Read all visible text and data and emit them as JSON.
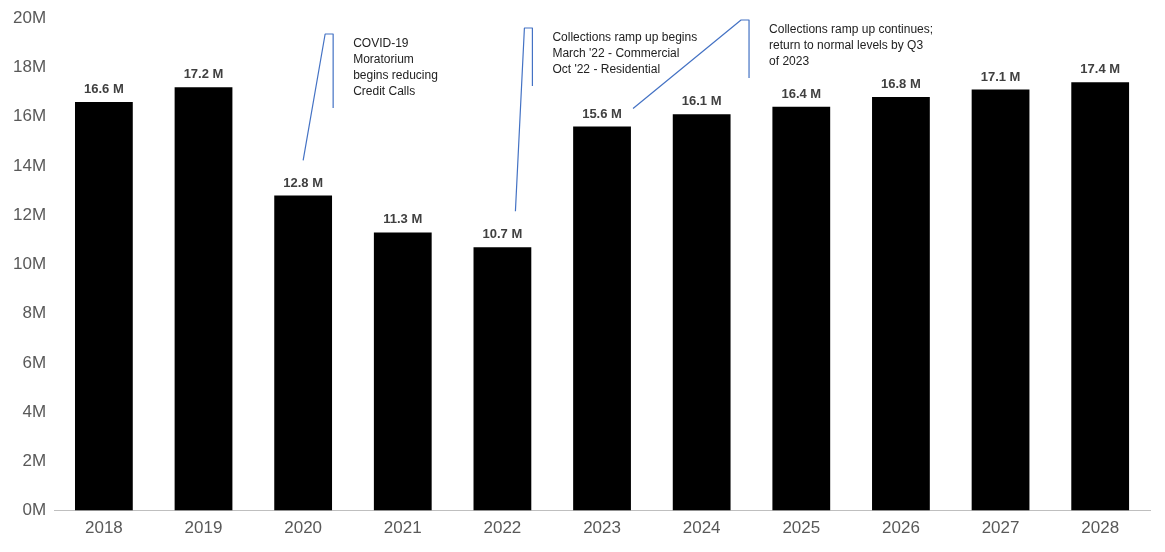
{
  "chart_data": {
    "type": "bar",
    "categories": [
      "2018",
      "2019",
      "2020",
      "2021",
      "2022",
      "2023",
      "2024",
      "2025",
      "2026",
      "2027",
      "2028"
    ],
    "values": [
      16.6,
      17.2,
      12.8,
      11.3,
      10.7,
      15.6,
      16.1,
      16.4,
      16.8,
      17.1,
      17.4
    ],
    "value_labels": [
      "16.6 M",
      "17.2 M",
      "12.8 M",
      "11.3 M",
      "10.7 M",
      "15.6 M",
      "16.1 M",
      "16.4 M",
      "16.8 M",
      "17.1 M",
      "17.4 M"
    ],
    "color": "#000000",
    "ylim": [
      0,
      20
    ],
    "yticks": [
      {
        "value": 0,
        "label": "0M"
      },
      {
        "value": 2,
        "label": "2M"
      },
      {
        "value": 4,
        "label": "4M"
      },
      {
        "value": 6,
        "label": "6M"
      },
      {
        "value": 8,
        "label": "8M"
      },
      {
        "value": 10,
        "label": "10M"
      },
      {
        "value": 12,
        "label": "12M"
      },
      {
        "value": 14,
        "label": "14M"
      },
      {
        "value": 16,
        "label": "16M"
      },
      {
        "value": 18,
        "label": "18M"
      },
      {
        "value": 20,
        "label": "20M"
      }
    ],
    "grid": false,
    "legend": false,
    "annotations": [
      "COVID-19\nMoratorium\nbegins reducing\nCredit Calls",
      "Collections ramp up begins\nMarch '22 - Commercial\nOct '22 - Residential",
      "Collections ramp up continues;\nreturn to normal levels by Q3\nof 2023"
    ]
  }
}
